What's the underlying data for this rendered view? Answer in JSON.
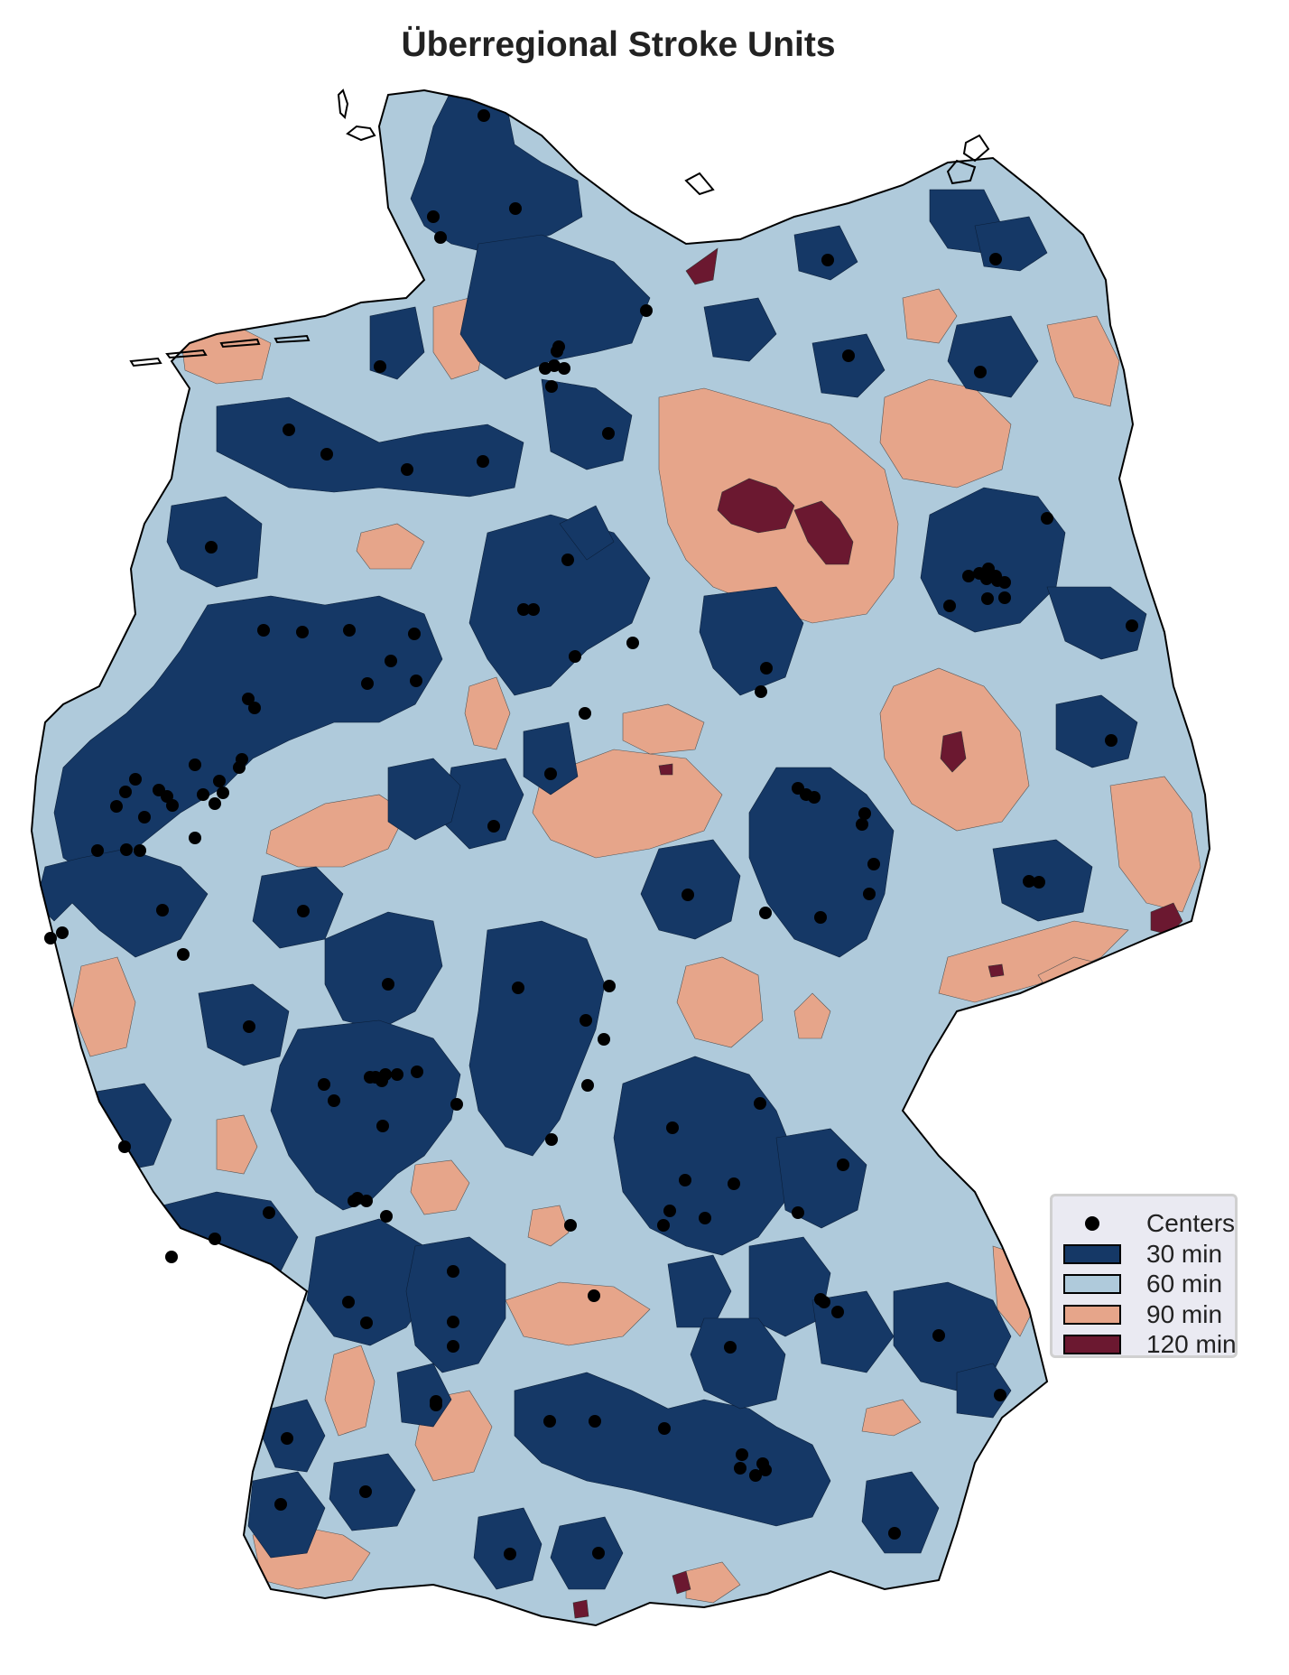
{
  "title": "Überregional Stroke Units",
  "colors": {
    "30min": "#153866",
    "60min": "#afcadb",
    "90min": "#e6a58a",
    "120min": "#6b1830",
    "center": "#000000"
  },
  "legend": {
    "items": [
      {
        "label": "Centers",
        "key": "center",
        "kind": "dot"
      },
      {
        "label": "30 min",
        "key": "30min",
        "kind": "patch"
      },
      {
        "label": "60 min",
        "key": "60min",
        "kind": "patch"
      },
      {
        "label": "90 min",
        "key": "90min",
        "kind": "patch"
      },
      {
        "label": "120 min",
        "key": "120min",
        "kind": "patch"
      }
    ]
  }
}
